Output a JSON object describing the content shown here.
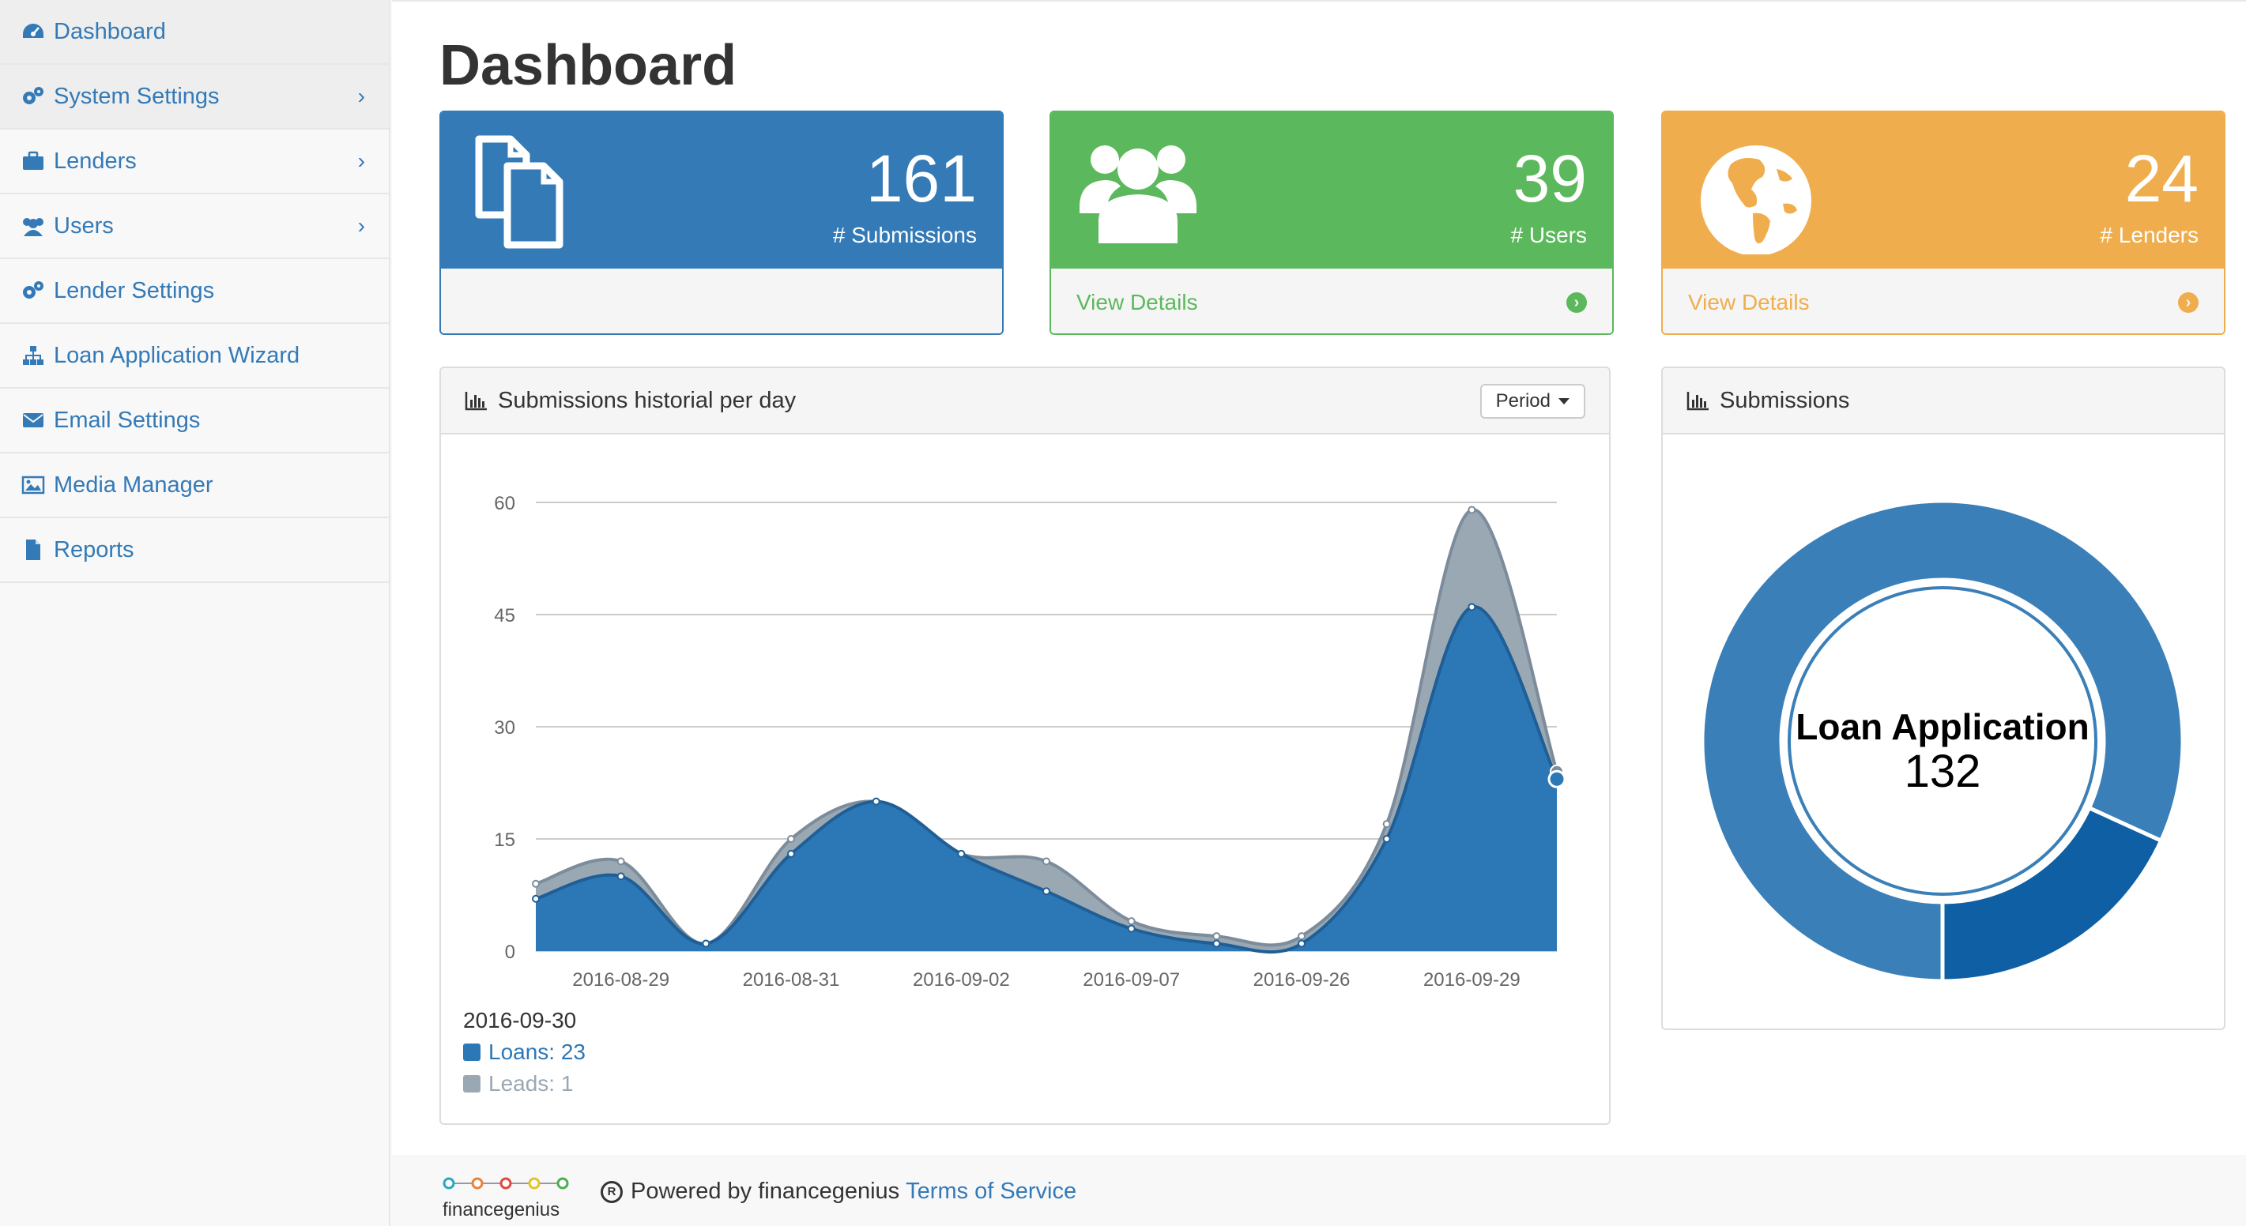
{
  "sidebar": {
    "items": [
      {
        "label": "Dashboard",
        "icon": "dashboard-icon"
      },
      {
        "label": "System Settings",
        "icon": "gears-icon"
      },
      {
        "label": "Lenders",
        "icon": "briefcase-icon"
      },
      {
        "label": "Users",
        "icon": "users-icon"
      },
      {
        "label": "Lender Settings",
        "icon": "gears-icon"
      },
      {
        "label": "Loan Application Wizard",
        "icon": "sitemap-icon"
      },
      {
        "label": "Email Settings",
        "icon": "envelope-icon"
      },
      {
        "label": "Media Manager",
        "icon": "image-icon"
      },
      {
        "label": "Reports",
        "icon": "file-icon"
      }
    ]
  },
  "page": {
    "title": "Dashboard"
  },
  "stats": {
    "submissions": {
      "value": "161",
      "label": "# Submissions",
      "icon": "files-icon",
      "color": "#337ab7"
    },
    "users": {
      "value": "39",
      "label": "# Users",
      "link": "View Details",
      "icon": "users-icon",
      "color": "#5cb85c"
    },
    "lenders": {
      "value": "24",
      "label": "# Lenders",
      "link": "View Details",
      "icon": "globe-icon",
      "color": "#f0ad4e"
    }
  },
  "history_panel": {
    "title": "Submissions historial per day",
    "period_label": "Period"
  },
  "donut_panel": {
    "title": "Submissions"
  },
  "legend": {
    "date": "2016-09-30",
    "loans": "Loans: 23",
    "leads": "Leads: 1"
  },
  "chart_data": [
    {
      "type": "area",
      "title": "Submissions historial per day",
      "x_tick_labels": [
        "2016-08-29",
        "2016-08-31",
        "2016-09-02",
        "2016-09-07",
        "2016-09-26",
        "2016-09-29"
      ],
      "y_ticks": [
        0,
        15,
        30,
        45,
        60
      ],
      "ylim": [
        0,
        60
      ],
      "stacked": true,
      "series": [
        {
          "name": "Loans",
          "color": "#2c78b7",
          "values": [
            7,
            10,
            1,
            13,
            20,
            13,
            8,
            3,
            1,
            1,
            15,
            46,
            23
          ]
        },
        {
          "name": "Leads",
          "color": "#9aa8b4",
          "values": [
            2,
            2,
            0,
            2,
            0,
            0,
            4,
            1,
            1,
            1,
            2,
            13,
            1
          ]
        }
      ],
      "grid": true
    },
    {
      "type": "pie",
      "variant": "donut",
      "center_label": "Loan Application",
      "center_value": "132",
      "slices": [
        {
          "value": 108,
          "color": "#3a7fb8"
        },
        {
          "value": 24,
          "color": "#0e5fa3"
        }
      ]
    }
  ],
  "footer": {
    "brand": "financegenius",
    "powered": "Powered by financegenius",
    "terms": "Terms of Service"
  }
}
